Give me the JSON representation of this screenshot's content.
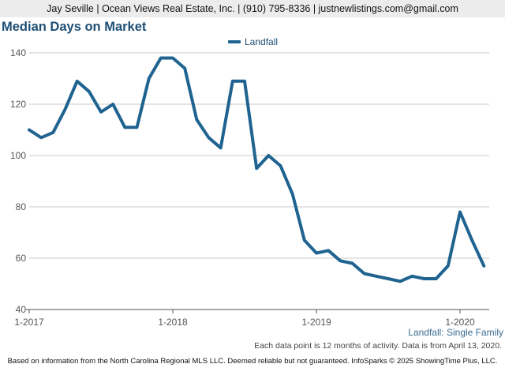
{
  "header": {
    "text": "Jay Seville | Ocean Views Real Estate, Inc. | (910) 795-8336 | justnewlistings.com@gmail.com"
  },
  "series_label": "Landfall: Single Family",
  "activity_note": "Each data point is 12 months of activity. Data is from April 13, 2020.",
  "footer": "Based on information from the North Carolina Regional MLS LLC. Deemed reliable but not guaranteed. InfoSparks © 2025 ShowingTime Plus, LLC.",
  "colors": {
    "line": "#1f6390",
    "title": "#1d4e74",
    "grid": "#c8c8c8",
    "axis": "#555555"
  },
  "chart_data": {
    "type": "line",
    "title": "Median Days on Market",
    "xlabel": "",
    "ylabel": "",
    "ylim": [
      40,
      140
    ],
    "yticks": [
      40,
      60,
      80,
      100,
      120,
      140
    ],
    "grid": true,
    "legend_position": "top-center",
    "x_tick_labels": [
      "1-2017",
      "1-2018",
      "1-2019",
      "1-2020"
    ],
    "x_tick_months": [
      "2017-01",
      "2018-01",
      "2019-01",
      "2020-01"
    ],
    "series": [
      {
        "name": "Landfall",
        "x": [
          "2017-01",
          "2017-02",
          "2017-03",
          "2017-04",
          "2017-05",
          "2017-06",
          "2017-07",
          "2017-08",
          "2017-09",
          "2017-10",
          "2017-11",
          "2017-12",
          "2018-01",
          "2018-02",
          "2018-03",
          "2018-04",
          "2018-05",
          "2018-06",
          "2018-07",
          "2018-08",
          "2018-09",
          "2018-10",
          "2018-11",
          "2018-12",
          "2019-01",
          "2019-02",
          "2019-03",
          "2019-04",
          "2019-05",
          "2019-06",
          "2019-07",
          "2019-08",
          "2019-09",
          "2019-10",
          "2019-11",
          "2019-12",
          "2020-01",
          "2020-02",
          "2020-03"
        ],
        "values": [
          110,
          107,
          109,
          118,
          129,
          125,
          117,
          120,
          111,
          111,
          130,
          138,
          138,
          134,
          114,
          107,
          103,
          129,
          129,
          95,
          100,
          96,
          85,
          67,
          62,
          63,
          59,
          58,
          54,
          53,
          52,
          51,
          53,
          52,
          52,
          57,
          78,
          67,
          57
        ]
      }
    ]
  }
}
